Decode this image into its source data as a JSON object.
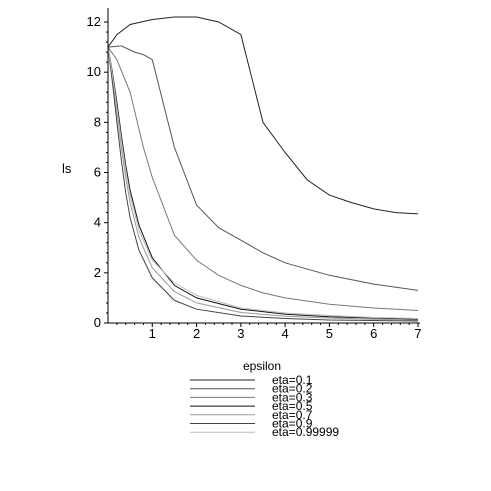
{
  "chart_data": {
    "type": "line",
    "title": "",
    "xlabel": "",
    "ylabel": "ls",
    "xlim": [
      0,
      7
    ],
    "ylim": [
      0,
      12.4
    ],
    "x_ticks": [
      1,
      2,
      3,
      4,
      5,
      6,
      7
    ],
    "y_ticks": [
      0,
      2,
      4,
      6,
      8,
      10,
      12
    ],
    "legend_title": "epsilon",
    "legend_position": "bottom-center",
    "series": [
      {
        "name": "eta=0.1",
        "color": "#222222",
        "x": [
          0,
          0.2,
          0.5,
          1,
          1.5,
          1.7,
          2,
          2.5,
          3,
          3.5,
          4,
          4.5,
          5,
          5.5,
          6,
          6.5,
          7
        ],
        "y": [
          11.0,
          11.5,
          11.9,
          12.1,
          12.2,
          12.2,
          12.2,
          12.0,
          11.5,
          8.0,
          6.8,
          5.7,
          5.1,
          4.8,
          4.55,
          4.4,
          4.35
        ]
      },
      {
        "name": "eta=0.2",
        "color": "#555555",
        "x": [
          0,
          0.3,
          0.6,
          0.8,
          1,
          1.5,
          2,
          2.5,
          3,
          3.5,
          4,
          5,
          6,
          7
        ],
        "y": [
          11.0,
          11.05,
          10.8,
          10.7,
          10.5,
          7.0,
          4.7,
          3.8,
          3.3,
          2.8,
          2.4,
          1.9,
          1.55,
          1.3
        ]
      },
      {
        "name": "eta=0.3",
        "color": "#777777",
        "x": [
          0,
          0.2,
          0.5,
          0.8,
          1,
          1.5,
          2,
          2.5,
          3,
          3.5,
          4,
          5,
          6,
          7
        ],
        "y": [
          11.0,
          10.5,
          9.2,
          7.0,
          5.8,
          3.5,
          2.5,
          1.9,
          1.5,
          1.2,
          1.0,
          0.75,
          0.6,
          0.5
        ]
      },
      {
        "name": "eta=0.5",
        "color": "#111111",
        "x": [
          0,
          0.1,
          0.2,
          0.3,
          0.4,
          0.5,
          0.7,
          1,
          1.5,
          2,
          3,
          4,
          5,
          6,
          7
        ],
        "y": [
          11.0,
          10.0,
          8.8,
          7.5,
          6.3,
          5.3,
          3.9,
          2.6,
          1.5,
          1.0,
          0.55,
          0.35,
          0.25,
          0.2,
          0.15
        ]
      },
      {
        "name": "eta=0.7",
        "color": "#999999",
        "x": [
          0,
          0.1,
          0.2,
          0.3,
          0.4,
          0.5,
          0.7,
          1,
          1.5,
          2,
          3,
          4,
          5,
          6,
          7
        ],
        "y": [
          11.0,
          9.8,
          8.4,
          7.0,
          5.8,
          4.8,
          3.4,
          2.2,
          1.25,
          0.8,
          0.42,
          0.27,
          0.2,
          0.15,
          0.12
        ]
      },
      {
        "name": "eta=0.9",
        "color": "#444444",
        "x": [
          0,
          0.1,
          0.2,
          0.3,
          0.4,
          0.5,
          0.7,
          1,
          1.5,
          2,
          3,
          4,
          5,
          6,
          7
        ],
        "y": [
          11.0,
          9.6,
          8.0,
          6.5,
          5.2,
          4.2,
          2.9,
          1.8,
          0.9,
          0.55,
          0.28,
          0.18,
          0.12,
          0.1,
          0.08
        ]
      },
      {
        "name": "eta=0.99999",
        "color": "#bbbbbb",
        "x": [
          0,
          0.1,
          0.2,
          0.3,
          0.4,
          0.5,
          0.7,
          1,
          1.5,
          2,
          3,
          4,
          5,
          6,
          7
        ],
        "y": [
          11.0,
          9.9,
          8.6,
          7.3,
          6.1,
          5.1,
          3.7,
          2.5,
          1.6,
          1.1,
          0.6,
          0.4,
          0.3,
          0.22,
          0.18
        ]
      }
    ]
  }
}
